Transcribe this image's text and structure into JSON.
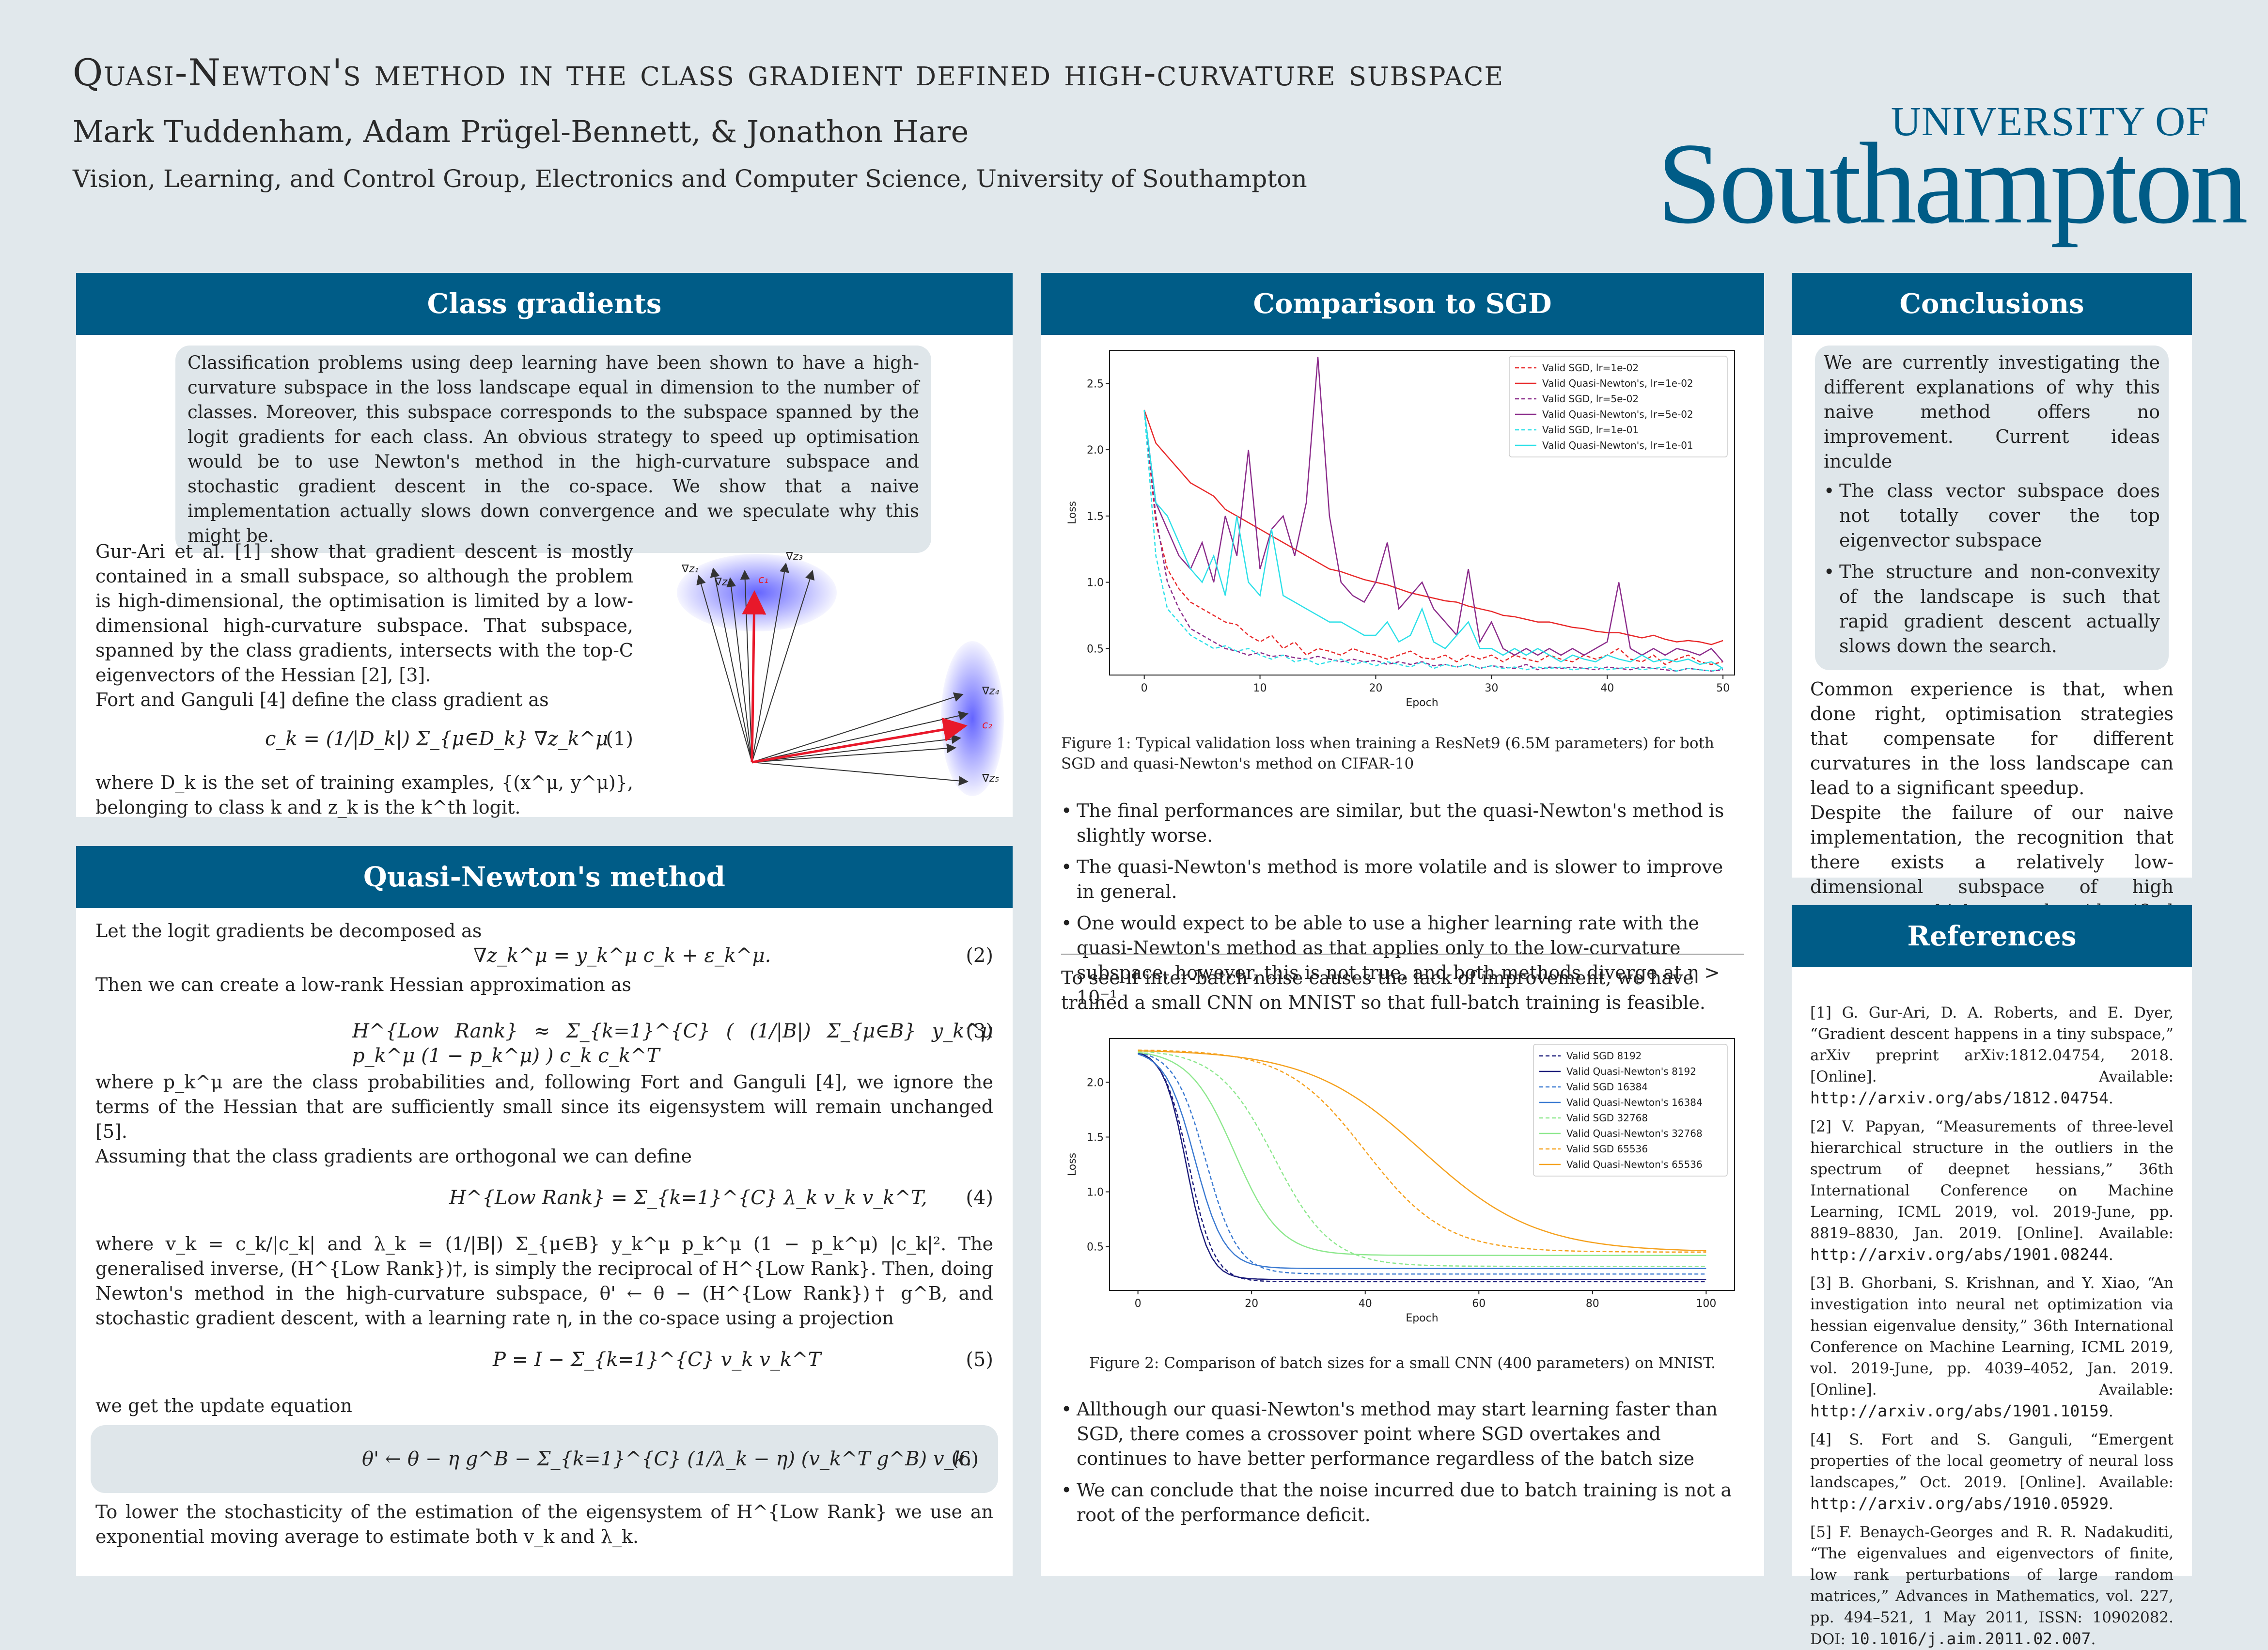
{
  "header": {
    "title": "Quasi-Newton's method in the class gradient defined high-curvature subspace",
    "authors": "Mark Tuddenham, Adam Prügel-Bennett, & Jonathon Hare",
    "affiliation": "Vision, Learning, and Control Group, Electronics and Computer Science, University of Southampton",
    "logo_top": "UNIVERSITY OF",
    "logo_main": "Southampton"
  },
  "class_gradients": {
    "heading": "Class gradients",
    "abstract": "Classification problems using deep learning have been shown to have a high-curvature subspace in the loss landscape equal in dimension to the number of classes. Moreover, this subspace corresponds to the subspace spanned by the logit gradients for each class. An obvious strategy to speed up optimisation would be to use Newton's method in the high-curvature subspace and stochastic gradient descent in the co-space. We show that a naive implementation actually slows down convergence and we speculate why this might be.",
    "para1": "Gur-Ari et al. [1] show that gradient descent is mostly contained in a small subspace, so although the problem is high-dimensional, the optimisation is limited by a low-dimensional high-curvature subspace. That subspace, spanned by the class gradients, intersects with the top-C eigenvectors of the Hessian [2], [3].",
    "para2": "Fort and Ganguli [4] define the class gradient as",
    "eq1": "c_k = (1/|D_k|) Σ_{μ∈D_k} ∇z_k^μ",
    "eq1_num": "(1)",
    "para3": "where D_k is the set of training examples, {(x^μ, y^μ)}, belonging to class k and z_k is the k^th logit.",
    "fig_labels": [
      "∇z₁",
      "∇z₂",
      "∇z₃",
      "c₁",
      "∇z₄",
      "∇z₅",
      "c₂"
    ]
  },
  "quasi_newton": {
    "heading": "Quasi-Newton's method",
    "p1": "Let the logit gradients be decomposed as",
    "eq2": "∇z_k^μ = y_k^μ c_k + ε_k^μ.",
    "eq2_num": "(2)",
    "p2": "Then we can create a low-rank Hessian approximation as",
    "eq3": "H^{Low Rank} ≈ Σ_{k=1}^{C} ( (1/|B|) Σ_{μ∈B} y_k^μ p_k^μ (1 − p_k^μ) ) c_k c_k^T",
    "eq3_num": "(3)",
    "p3": "where p_k^μ are the class probabilities and, following Fort and Ganguli [4], we ignore the terms of the Hessian that are sufficiently small since its eigensystem will remain unchanged [5].",
    "p4": "Assuming that the class gradients are orthogonal we can define",
    "eq4": "H^{Low Rank} = Σ_{k=1}^{C} λ_k v_k v_k^T,",
    "eq4_num": "(4)",
    "p5": "where v_k = c_k/|c_k| and λ_k = (1/|B|) Σ_{μ∈B} y_k^μ p_k^μ (1 − p_k^μ) |c_k|². The generalised inverse, (H^{Low Rank})†, is simply the reciprocal of H^{Low Rank}. Then, doing Newton's method in the high-curvature subspace, θ' ← θ − (H^{Low Rank})† g^B, and stochastic gradient descent, with a learning rate η, in the co-space using a projection",
    "eq5": "P = I − Σ_{k=1}^{C} v_k v_k^T",
    "eq5_num": "(5)",
    "p6": "we get the update equation",
    "eq6": "θ' ← θ − η g^B − Σ_{k=1}^{C} (1/λ_k − η) (v_k^T g^B) v_k.",
    "eq6_num": "(6)",
    "p7": "To lower the stochasticity of the estimation of the eigensystem of H^{Low Rank} we use an exponential moving average to estimate both v_k and λ_k."
  },
  "comparison": {
    "heading": "Comparison to SGD",
    "fig1_caption": "Figure 1: Typical validation loss when training a ResNet9 (6.5M parameters) for both SGD and quasi-Newton's method on CIFAR-10",
    "bullets1": [
      "The final performances are similar, but the quasi-Newton's method is slightly worse.",
      "The quasi-Newton's method is more volatile and is slower to improve in general.",
      "One would expect to be able to use a higher learning rate with the quasi-Newton's method as that applies only to the low-curvature subspace, however, this is not true, and both methods diverge at η > 10⁻¹"
    ],
    "mid_text": "To see if inter-batch noise causes the lack of improvement, we have trained a small CNN on MNIST so that full-batch training is feasible.",
    "fig2_caption": "Figure 2: Comparison of batch sizes for a small CNN (400 parameters) on MNIST.",
    "bullets2": [
      "Allthough our quasi-Newton's method may start learning faster than SGD, there comes a crossover point where SGD overtakes and continues to have better performance regardless of the batch size",
      "We can conclude that the noise incurred due to batch training is not a root of the performance deficit."
    ]
  },
  "conclusions": {
    "heading": "Conclusions",
    "box_text": "We are currently investigating the different explanations of why this naive method offers no improvement. Current ideas inculde",
    "box_bullets": [
      "The class vector subspace does not totally cover the top eigenvector subspace",
      "The structure and non-convexity of the landscape is such that rapid gradient descent actually slows down the search."
    ],
    "p1": "Common experience is that, when done right, optimisation strategies that compensate for different curvatures in the loss landscape can lead to a significant speedup.",
    "p2": "Despite the failure of our naive implementation, the recognition that there exists a relatively low-dimensional subspace of high curvature which can be identified relatively easily suggests that it may be possible to improve on current methods."
  },
  "references": {
    "heading": "References",
    "items": [
      {
        "text": "[1] G. Gur-Ari, D. A. Roberts, and E. Dyer, “Gradient descent happens in a tiny subspace,” arXiv preprint arXiv:1812.04754, 2018. [Online]. Available: ",
        "url": "http://arxiv.org/abs/1812.04754",
        "tail": "."
      },
      {
        "text": "[2] V. Papyan, “Measurements of three-level hierarchical structure in the outliers in the spectrum of deepnet hessians,” 36th International Conference on Machine Learning, ICML 2019, vol. 2019-June, pp. 8819–8830, Jan. 2019. [Online]. Available: ",
        "url": "http://arxiv.org/abs/1901.08244",
        "tail": "."
      },
      {
        "text": "[3] B. Ghorbani, S. Krishnan, and Y. Xiao, “An investigation into neural net optimization via hessian eigenvalue density,” 36th International Conference on Machine Learning, ICML 2019, vol. 2019-June, pp. 4039–4052, Jan. 2019. [Online]. Available: ",
        "url": "http://arxiv.org/abs/1901.10159",
        "tail": "."
      },
      {
        "text": "[4] S. Fort and S. Ganguli, “Emergent properties of the local geometry of neural loss landscapes,” Oct. 2019. [Online]. Available: ",
        "url": "http://arxiv.org/abs/1910.05929",
        "tail": "."
      },
      {
        "text": "[5] F. Benaych-Georges and R. R. Nadakuditi, “The eigenvalues and eigenvectors of finite, low rank perturbations of large random matrices,” Advances in Mathematics, vol. 227, pp. 494–521, 1 May 2011, ISSN: 10902082. DOI: ",
        "url": "10.1016/j.aim.2011.02.007",
        "tail": "."
      }
    ]
  },
  "chart_data": [
    {
      "type": "line",
      "xlabel": "Epoch",
      "ylabel": "Loss",
      "xlim": [
        -3,
        51
      ],
      "ylim": [
        0.3,
        2.75
      ],
      "xticks": [
        0,
        10,
        20,
        30,
        40,
        50
      ],
      "yticks": [
        0.5,
        1.0,
        1.5,
        2.0,
        2.5
      ],
      "legend": "top-right",
      "series": [
        {
          "name": "Valid SGD, lr=1e-02",
          "color": "#e8292a",
          "dash": true,
          "values": [
            2.3,
            1.45,
            1.1,
            0.95,
            0.85,
            0.8,
            0.75,
            0.7,
            0.68,
            0.6,
            0.55,
            0.6,
            0.5,
            0.55,
            0.45,
            0.5,
            0.48,
            0.45,
            0.5,
            0.47,
            0.45,
            0.42,
            0.45,
            0.48,
            0.43,
            0.42,
            0.45,
            0.4,
            0.45,
            0.42,
            0.45,
            0.4,
            0.45,
            0.42,
            0.4,
            0.45,
            0.42,
            0.4,
            0.45,
            0.42,
            0.45,
            0.5,
            0.42,
            0.4,
            0.45,
            0.38,
            0.42,
            0.45,
            0.4,
            0.38,
            0.4
          ]
        },
        {
          "name": "Valid Quasi-Newton's, lr=1e-02",
          "color": "#e8292a",
          "dash": false,
          "values": [
            2.3,
            2.05,
            1.95,
            1.85,
            1.75,
            1.7,
            1.65,
            1.55,
            1.5,
            1.45,
            1.4,
            1.35,
            1.3,
            1.25,
            1.2,
            1.15,
            1.1,
            1.08,
            1.05,
            1.02,
            1.0,
            0.98,
            0.95,
            0.92,
            0.9,
            0.88,
            0.86,
            0.85,
            0.82,
            0.8,
            0.78,
            0.75,
            0.74,
            0.72,
            0.7,
            0.7,
            0.68,
            0.66,
            0.65,
            0.63,
            0.62,
            0.62,
            0.6,
            0.58,
            0.6,
            0.57,
            0.55,
            0.56,
            0.55,
            0.53,
            0.56
          ]
        },
        {
          "name": "Valid SGD, lr=5e-02",
          "color": "#8b2c8b",
          "dash": true,
          "values": [
            2.3,
            1.5,
            1.0,
            0.8,
            0.65,
            0.6,
            0.55,
            0.5,
            0.48,
            0.45,
            0.47,
            0.44,
            0.45,
            0.43,
            0.42,
            0.44,
            0.42,
            0.4,
            0.42,
            0.4,
            0.41,
            0.38,
            0.4,
            0.38,
            0.4,
            0.37,
            0.38,
            0.36,
            0.38,
            0.35,
            0.37,
            0.36,
            0.35,
            0.38,
            0.34,
            0.36,
            0.35,
            0.36,
            0.35,
            0.34,
            0.36,
            0.35,
            0.34,
            0.36,
            0.35,
            0.34,
            0.33,
            0.35,
            0.34,
            0.33,
            0.34
          ]
        },
        {
          "name": "Valid Quasi-Newton's, lr=5e-02",
          "color": "#8b2c8b",
          "dash": false,
          "values": [
            2.3,
            1.6,
            1.4,
            1.2,
            1.1,
            1.3,
            1.0,
            1.5,
            1.2,
            2.0,
            1.1,
            1.4,
            1.5,
            1.2,
            1.6,
            2.7,
            1.5,
            1.0,
            0.9,
            0.85,
            1.0,
            1.3,
            0.8,
            0.9,
            1.0,
            0.8,
            0.7,
            0.6,
            1.1,
            0.55,
            0.7,
            0.5,
            0.45,
            0.5,
            0.45,
            0.5,
            0.45,
            0.5,
            0.45,
            0.5,
            0.55,
            1.0,
            0.5,
            0.45,
            0.5,
            0.45,
            0.5,
            0.48,
            0.45,
            0.5,
            0.4
          ]
        },
        {
          "name": "Valid SGD, lr=1e-01",
          "color": "#2de0e8",
          "dash": true,
          "values": [
            2.3,
            1.2,
            0.8,
            0.7,
            0.6,
            0.55,
            0.5,
            0.52,
            0.48,
            0.5,
            0.45,
            0.42,
            0.45,
            0.4,
            0.42,
            0.38,
            0.4,
            0.42,
            0.38,
            0.4,
            0.37,
            0.4,
            0.38,
            0.36,
            0.4,
            0.35,
            0.38,
            0.36,
            0.38,
            0.35,
            0.37,
            0.35,
            0.36,
            0.34,
            0.36,
            0.35,
            0.36,
            0.34,
            0.35,
            0.36,
            0.34,
            0.35,
            0.36,
            0.34,
            0.35,
            0.36,
            0.33,
            0.35,
            0.34,
            0.33,
            0.35
          ]
        },
        {
          "name": "Valid Quasi-Newton's, lr=1e-01",
          "color": "#2de0e8",
          "dash": false,
          "values": [
            2.3,
            1.6,
            1.5,
            1.3,
            1.1,
            1.0,
            1.2,
            0.9,
            1.5,
            1.0,
            0.9,
            1.4,
            0.9,
            0.85,
            0.8,
            0.75,
            0.7,
            0.7,
            0.65,
            0.6,
            0.6,
            0.7,
            0.55,
            0.6,
            0.8,
            0.55,
            0.5,
            0.6,
            0.7,
            0.5,
            0.5,
            0.45,
            0.5,
            0.45,
            0.5,
            0.45,
            0.4,
            0.45,
            0.42,
            0.4,
            0.45,
            0.42,
            0.4,
            0.45,
            0.4,
            0.42,
            0.4,
            0.42,
            0.38,
            0.4,
            0.35
          ]
        }
      ]
    },
    {
      "type": "line",
      "xlabel": "Epoch",
      "ylabel": "Loss",
      "xlim": [
        -5,
        105
      ],
      "ylim": [
        0.1,
        2.4
      ],
      "xticks": [
        0,
        20,
        40,
        60,
        80,
        100
      ],
      "yticks": [
        0.5,
        1.0,
        1.5,
        2.0
      ],
      "legend": "top-right",
      "series": [
        {
          "name": "Valid SGD 8192",
          "color": "#1c1c7a",
          "dash": true,
          "l0": 2.3,
          "linf": 0.18,
          "mid": 9,
          "w": 2.2
        },
        {
          "name": "Valid Quasi-Newton's 8192",
          "color": "#1c1c7a",
          "dash": false,
          "l0": 2.3,
          "linf": 0.2,
          "mid": 8.5,
          "w": 2.0
        },
        {
          "name": "Valid SGD 16384",
          "color": "#3b7ad1",
          "dash": true,
          "l0": 2.3,
          "linf": 0.25,
          "mid": 12,
          "w": 2.8
        },
        {
          "name": "Valid Quasi-Newton's 16384",
          "color": "#3b7ad1",
          "dash": false,
          "l0": 2.3,
          "linf": 0.3,
          "mid": 10,
          "w": 2.6
        },
        {
          "name": "Valid SGD 32768",
          "color": "#8ee88e",
          "dash": true,
          "l0": 2.3,
          "linf": 0.32,
          "mid": 24,
          "w": 5
        },
        {
          "name": "Valid Quasi-Newton's 32768",
          "color": "#8ee88e",
          "dash": false,
          "l0": 2.3,
          "linf": 0.42,
          "mid": 17,
          "w": 4
        },
        {
          "name": "Valid SGD 65536",
          "color": "#f5a11e",
          "dash": true,
          "l0": 2.3,
          "linf": 0.45,
          "mid": 40,
          "w": 7
        },
        {
          "name": "Valid Quasi-Newton's 65536",
          "color": "#f5a11e",
          "dash": false,
          "l0": 2.3,
          "linf": 0.45,
          "mid": 50,
          "w": 10
        }
      ]
    }
  ]
}
